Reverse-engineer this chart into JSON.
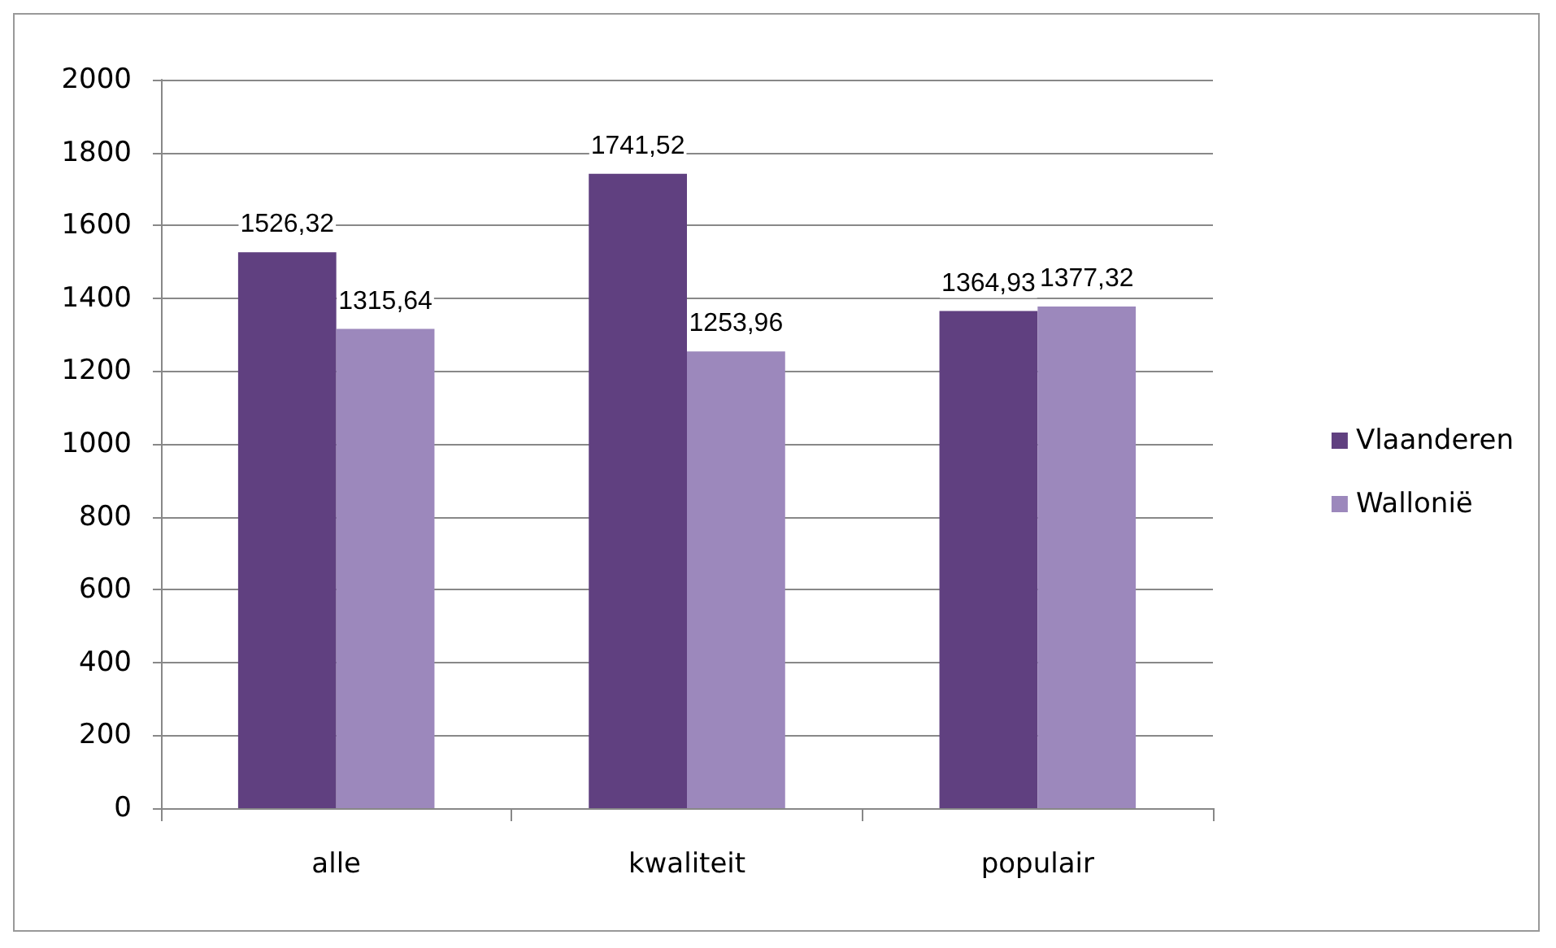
{
  "chart_data": {
    "type": "bar",
    "categories": [
      "alle",
      "kwaliteit",
      "populair"
    ],
    "series": [
      {
        "name": "Vlaanderen",
        "color": "#604080",
        "values": [
          1526.32,
          1741.52,
          1364.93
        ],
        "value_labels": [
          "1526,32",
          "1741,52",
          "1364,93"
        ]
      },
      {
        "name": "Wallonië",
        "color": "#9c88bc",
        "values": [
          1315.64,
          1253.96,
          1377.32
        ],
        "value_labels": [
          "1315,64",
          "1253,96",
          "1377,32"
        ]
      }
    ],
    "ylim": [
      0,
      2000
    ],
    "yticks": [
      0,
      200,
      400,
      600,
      800,
      1000,
      1200,
      1400,
      1600,
      1800,
      2000
    ],
    "grid": "y",
    "legend": "right"
  }
}
